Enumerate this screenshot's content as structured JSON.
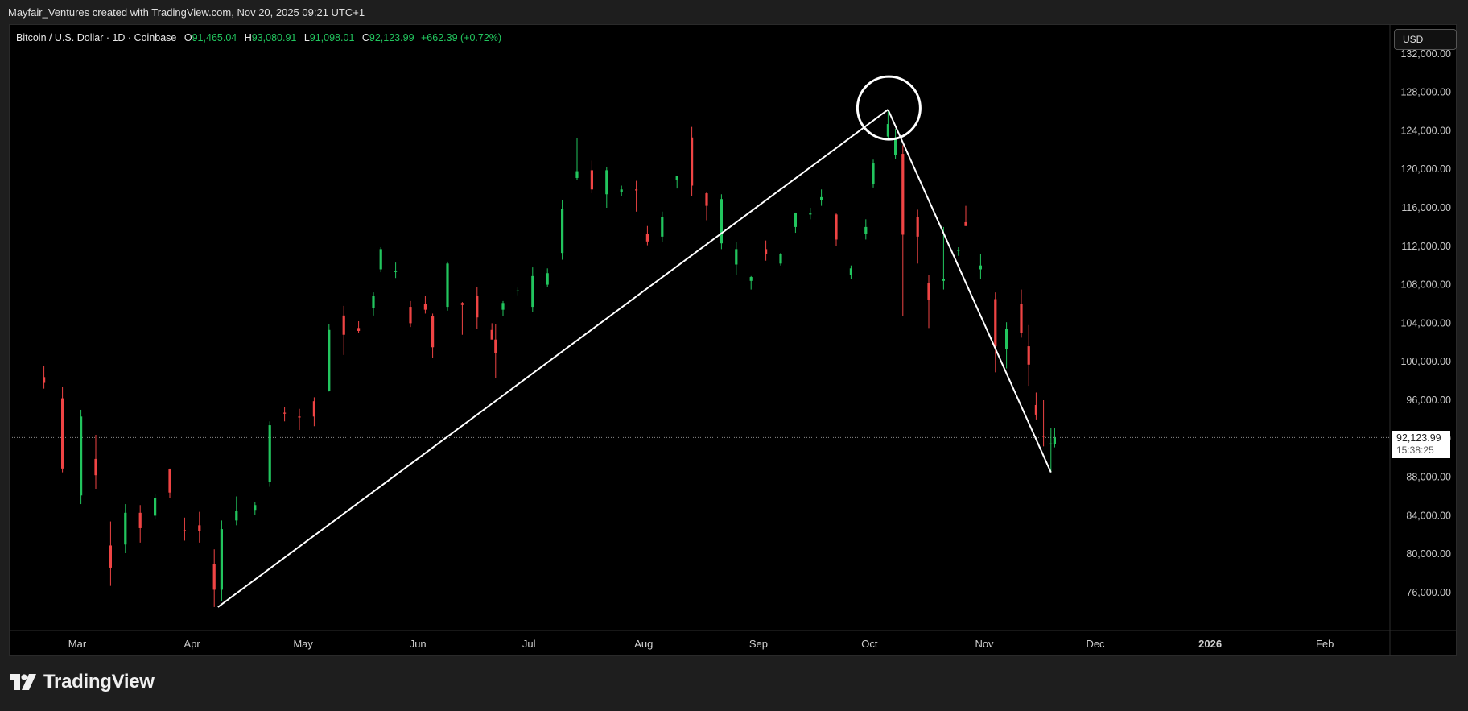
{
  "attribution": "Mayfair_Ventures created with TradingView.com, Nov 20, 2025 09:21 UTC+1",
  "legend": {
    "symbol": "Bitcoin / U.S. Dollar · 1D · Coinbase",
    "open_label": "O",
    "open": "91,465.04",
    "high_label": "H",
    "high": "93,080.91",
    "low_label": "L",
    "low": "91,098.01",
    "close_label": "C",
    "close": "92,123.99",
    "change": "+662.39 (+0.72%)"
  },
  "currency_button": "USD",
  "price_tag": {
    "price": "92,123.99",
    "countdown": "15:38:25"
  },
  "brand": {
    "logo_text": "TradingView",
    "logo_icon": "tradingview-logo-icon"
  },
  "colors": {
    "up": "#22c55e",
    "down": "#ef4444",
    "background": "#000000",
    "drawing": "#ffffff"
  },
  "chart_data": {
    "type": "candlestick",
    "y_ticks": [
      "76,000.00",
      "80,000.00",
      "84,000.00",
      "88,000.00",
      "92,000.00",
      "96,000.00",
      "100,000.00",
      "104,000.00",
      "108,000.00",
      "112,000.00",
      "116,000.00",
      "120,000.00",
      "124,000.00",
      "128,000.00",
      "132,000.00"
    ],
    "ylim": [
      71000,
      134000
    ],
    "x_ticks": [
      "Mar",
      "Apr",
      "May",
      "Jun",
      "Jul",
      "Aug",
      "Sep",
      "Oct",
      "Nov",
      "Dec",
      "2026",
      "Feb"
    ],
    "current_price": 92123.99,
    "series": [
      {
        "date": "2025-02-20",
        "o": 98400,
        "h": 99600,
        "l": 97200,
        "c": 97800
      },
      {
        "date": "2025-02-25",
        "o": 96200,
        "h": 97400,
        "l": 88500,
        "c": 88900
      },
      {
        "date": "2025-03-02",
        "o": 86100,
        "h": 95000,
        "l": 85200,
        "c": 94300
      },
      {
        "date": "2025-03-06",
        "o": 89900,
        "h": 92400,
        "l": 86800,
        "c": 88200
      },
      {
        "date": "2025-03-10",
        "o": 80900,
        "h": 83400,
        "l": 76700,
        "c": 78600
      },
      {
        "date": "2025-03-14",
        "o": 81000,
        "h": 85200,
        "l": 80100,
        "c": 84300
      },
      {
        "date": "2025-03-18",
        "o": 84300,
        "h": 85100,
        "l": 81200,
        "c": 82700
      },
      {
        "date": "2025-03-22",
        "o": 84000,
        "h": 86200,
        "l": 83600,
        "c": 85800
      },
      {
        "date": "2025-03-26",
        "o": 88800,
        "h": 88900,
        "l": 85800,
        "c": 86400
      },
      {
        "date": "2025-03-30",
        "o": 82500,
        "h": 83800,
        "l": 81400,
        "c": 82400
      },
      {
        "date": "2025-04-03",
        "o": 83000,
        "h": 84400,
        "l": 81200,
        "c": 82400
      },
      {
        "date": "2025-04-07",
        "o": 79000,
        "h": 80500,
        "l": 74500,
        "c": 76300
      },
      {
        "date": "2025-04-09",
        "o": 76300,
        "h": 83500,
        "l": 75100,
        "c": 82600
      },
      {
        "date": "2025-04-13",
        "o": 83500,
        "h": 86000,
        "l": 83000,
        "c": 84500
      },
      {
        "date": "2025-04-18",
        "o": 84600,
        "h": 85400,
        "l": 84100,
        "c": 85100
      },
      {
        "date": "2025-04-22",
        "o": 87500,
        "h": 93800,
        "l": 87000,
        "c": 93400
      },
      {
        "date": "2025-04-26",
        "o": 94700,
        "h": 95300,
        "l": 93800,
        "c": 94600
      },
      {
        "date": "2025-04-30",
        "o": 94300,
        "h": 95100,
        "l": 92900,
        "c": 94200
      },
      {
        "date": "2025-05-04",
        "o": 95900,
        "h": 96300,
        "l": 93300,
        "c": 94300
      },
      {
        "date": "2025-05-08",
        "o": 97000,
        "h": 103900,
        "l": 96900,
        "c": 103300
      },
      {
        "date": "2025-05-12",
        "o": 104800,
        "h": 105800,
        "l": 100700,
        "c": 102800
      },
      {
        "date": "2025-05-16",
        "o": 103500,
        "h": 104200,
        "l": 103000,
        "c": 103200
      },
      {
        "date": "2025-05-20",
        "o": 105600,
        "h": 107200,
        "l": 104800,
        "c": 106800
      },
      {
        "date": "2025-05-22",
        "o": 109600,
        "h": 111900,
        "l": 109300,
        "c": 111700
      },
      {
        "date": "2025-05-26",
        "o": 109400,
        "h": 110300,
        "l": 108700,
        "c": 109400
      },
      {
        "date": "2025-05-30",
        "o": 105700,
        "h": 106300,
        "l": 103600,
        "c": 104000
      },
      {
        "date": "2025-06-03",
        "o": 106000,
        "h": 106800,
        "l": 105000,
        "c": 105400
      },
      {
        "date": "2025-06-05",
        "o": 104700,
        "h": 105000,
        "l": 100400,
        "c": 101500
      },
      {
        "date": "2025-06-09",
        "o": 105700,
        "h": 110400,
        "l": 105300,
        "c": 110200
      },
      {
        "date": "2025-06-13",
        "o": 106100,
        "h": 106200,
        "l": 102800,
        "c": 105900
      },
      {
        "date": "2025-06-17",
        "o": 106800,
        "h": 107800,
        "l": 103400,
        "c": 104600
      },
      {
        "date": "2025-06-21",
        "o": 103300,
        "h": 104000,
        "l": 102400,
        "c": 102300
      },
      {
        "date": "2025-06-22",
        "o": 102300,
        "h": 103900,
        "l": 98300,
        "c": 100900
      },
      {
        "date": "2025-06-24",
        "o": 105400,
        "h": 106300,
        "l": 104700,
        "c": 106100
      },
      {
        "date": "2025-06-28",
        "o": 107300,
        "h": 107700,
        "l": 106900,
        "c": 107400
      },
      {
        "date": "2025-07-02",
        "o": 105700,
        "h": 109800,
        "l": 105200,
        "c": 108900
      },
      {
        "date": "2025-07-06",
        "o": 108000,
        "h": 109700,
        "l": 107800,
        "c": 109200
      },
      {
        "date": "2025-07-10",
        "o": 111300,
        "h": 116800,
        "l": 110600,
        "c": 115900
      },
      {
        "date": "2025-07-14",
        "o": 119100,
        "h": 123200,
        "l": 118900,
        "c": 119800
      },
      {
        "date": "2025-07-18",
        "o": 119900,
        "h": 120900,
        "l": 117500,
        "c": 117900
      },
      {
        "date": "2025-07-22",
        "o": 117400,
        "h": 120200,
        "l": 116000,
        "c": 119900
      },
      {
        "date": "2025-07-26",
        "o": 117600,
        "h": 118300,
        "l": 117200,
        "c": 117900
      },
      {
        "date": "2025-07-30",
        "o": 117900,
        "h": 118800,
        "l": 115600,
        "c": 117800
      },
      {
        "date": "2025-08-02",
        "o": 113300,
        "h": 114100,
        "l": 112100,
        "c": 112500
      },
      {
        "date": "2025-08-06",
        "o": 113000,
        "h": 115600,
        "l": 112400,
        "c": 115000
      },
      {
        "date": "2025-08-10",
        "o": 118900,
        "h": 119200,
        "l": 118000,
        "c": 119300
      },
      {
        "date": "2025-08-14",
        "o": 123300,
        "h": 124400,
        "l": 117200,
        "c": 118300
      },
      {
        "date": "2025-08-18",
        "o": 117500,
        "h": 117600,
        "l": 114700,
        "c": 116200
      },
      {
        "date": "2025-08-22",
        "o": 112300,
        "h": 117400,
        "l": 111700,
        "c": 116900
      },
      {
        "date": "2025-08-26",
        "o": 110100,
        "h": 112400,
        "l": 109000,
        "c": 111700
      },
      {
        "date": "2025-08-30",
        "o": 108400,
        "h": 108900,
        "l": 107500,
        "c": 108800
      },
      {
        "date": "2025-09-03",
        "o": 111700,
        "h": 112600,
        "l": 110500,
        "c": 111200
      },
      {
        "date": "2025-09-07",
        "o": 110200,
        "h": 111300,
        "l": 110000,
        "c": 111200
      },
      {
        "date": "2025-09-11",
        "o": 114000,
        "h": 115500,
        "l": 113400,
        "c": 115500
      },
      {
        "date": "2025-09-15",
        "o": 115300,
        "h": 116000,
        "l": 114800,
        "c": 115400
      },
      {
        "date": "2025-09-18",
        "o": 116800,
        "h": 117900,
        "l": 116200,
        "c": 117100
      },
      {
        "date": "2025-09-22",
        "o": 115300,
        "h": 115400,
        "l": 112000,
        "c": 112700
      },
      {
        "date": "2025-09-26",
        "o": 109000,
        "h": 110000,
        "l": 108600,
        "c": 109700
      },
      {
        "date": "2025-09-30",
        "o": 113300,
        "h": 114800,
        "l": 112700,
        "c": 114000
      },
      {
        "date": "2025-10-02",
        "o": 118500,
        "h": 121000,
        "l": 118100,
        "c": 120600
      },
      {
        "date": "2025-10-06",
        "o": 123400,
        "h": 126200,
        "l": 123200,
        "c": 124700
      },
      {
        "date": "2025-10-08",
        "o": 121500,
        "h": 124200,
        "l": 121100,
        "c": 123300
      },
      {
        "date": "2025-10-10",
        "o": 121600,
        "h": 122500,
        "l": 104700,
        "c": 113200
      },
      {
        "date": "2025-10-14",
        "o": 115000,
        "h": 115800,
        "l": 110200,
        "c": 113000
      },
      {
        "date": "2025-10-17",
        "o": 108200,
        "h": 109000,
        "l": 103500,
        "c": 106400
      },
      {
        "date": "2025-10-21",
        "o": 108400,
        "h": 114000,
        "l": 107500,
        "c": 108600
      },
      {
        "date": "2025-10-25",
        "o": 111600,
        "h": 111900,
        "l": 111000,
        "c": 111600
      },
      {
        "date": "2025-10-27",
        "o": 114500,
        "h": 116200,
        "l": 114100,
        "c": 114100
      },
      {
        "date": "2025-10-31",
        "o": 109600,
        "h": 111200,
        "l": 108600,
        "c": 110000
      },
      {
        "date": "2025-11-04",
        "o": 106500,
        "h": 107200,
        "l": 98900,
        "c": 101600
      },
      {
        "date": "2025-11-07",
        "o": 101300,
        "h": 104100,
        "l": 99300,
        "c": 103400
      },
      {
        "date": "2025-11-11",
        "o": 106000,
        "h": 107500,
        "l": 102500,
        "c": 103000
      },
      {
        "date": "2025-11-13",
        "o": 101600,
        "h": 103800,
        "l": 97500,
        "c": 99700
      },
      {
        "date": "2025-11-15",
        "o": 95500,
        "h": 96800,
        "l": 94000,
        "c": 94500
      },
      {
        "date": "2025-11-17",
        "o": 92300,
        "h": 96000,
        "l": 91200,
        "c": 92200
      },
      {
        "date": "2025-11-19",
        "o": 91500,
        "h": 93100,
        "l": 88500,
        "c": 91500
      },
      {
        "date": "2025-11-20",
        "o": 91465.04,
        "h": 93080.91,
        "l": 91098.01,
        "c": 92123.99
      }
    ],
    "drawings": [
      {
        "type": "trendline",
        "from": {
          "date": "2025-04-08",
          "price": 74500
        },
        "to": {
          "date": "2025-10-06",
          "price": 126200
        }
      },
      {
        "type": "trendline",
        "from": {
          "date": "2025-10-06",
          "price": 126200
        },
        "to": {
          "date": "2025-11-19",
          "price": 88500
        }
      },
      {
        "type": "circle",
        "center": {
          "date": "2025-10-06",
          "price": 126200
        }
      }
    ]
  }
}
